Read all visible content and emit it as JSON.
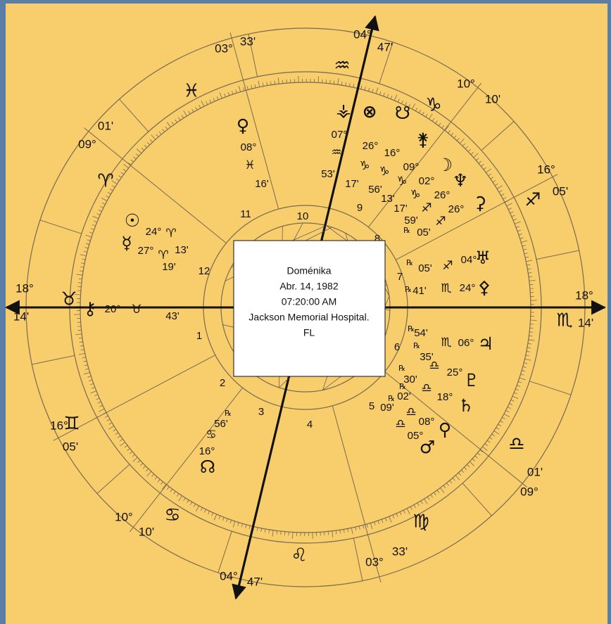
{
  "center_box": {
    "lines": [
      "Doménika",
      "Abr. 14, 1982",
      "07:20:00 AM",
      "Jackson Memorial Hospital.",
      "FL"
    ]
  },
  "cusps": [
    {
      "deg": "03°",
      "min": "33'"
    },
    {
      "deg": "04°",
      "min": "47'"
    },
    {
      "deg": "10°",
      "min": "10'"
    },
    {
      "deg": "16°",
      "min": "05'"
    },
    {
      "deg": "18°",
      "min": "14'"
    },
    {
      "deg": "09°",
      "min": "01'"
    },
    {
      "deg": "03°",
      "min": "33'"
    },
    {
      "deg": "04°",
      "min": "47'"
    },
    {
      "deg": "10°",
      "min": "10'"
    },
    {
      "deg": "16°",
      "min": "05'"
    },
    {
      "deg": "18°",
      "min": "14'"
    },
    {
      "deg": "09°",
      "min": "01'"
    }
  ],
  "signs": [
    "♒",
    "♓",
    "♑",
    "♈",
    "♐",
    "♉",
    "♏",
    "♊",
    "♎",
    "♋",
    "♍",
    "♌",
    "♉",
    "♏"
  ],
  "houses": [
    "10",
    "11",
    "12",
    "1",
    "2",
    "3",
    "4",
    "5",
    "6",
    "7",
    "8",
    "9"
  ],
  "points": [
    {
      "glyph": "♀",
      "deg": "08°",
      "sign": "♓",
      "min": "16'"
    },
    {
      "glyph": "⚶",
      "deg": "07°",
      "sign": "♒",
      "min": "53'"
    },
    {
      "glyph": "⊗",
      "deg": "26°",
      "sign": "♑",
      "min": "17'"
    },
    {
      "glyph": "☋",
      "deg": "16°",
      "sign": "♑",
      "min": "56'"
    },
    {
      "glyph": "⚵",
      "deg": "09°",
      "sign": "♑",
      "min": "13'"
    },
    {
      "glyph": "☽",
      "deg": "02°",
      "sign": "♑",
      "min": "17'"
    },
    {
      "glyph": "♆",
      "deg": "26°",
      "sign": "♐",
      "min": "59'"
    },
    {
      "glyph": "⚳",
      "deg": "26°",
      "sign": "♐",
      "min": "05'",
      "retro": "℞"
    },
    {
      "glyph": "♅",
      "deg": "04°",
      "sign": "♐",
      "min": "05'",
      "retro": "℞"
    },
    {
      "glyph": "⚴",
      "deg": "24°",
      "sign": "♏",
      "min": "41'",
      "retro": "℞"
    },
    {
      "glyph": "♃",
      "deg": "06°",
      "sign": "♏",
      "min": "54'",
      "retro": "℞"
    },
    {
      "glyph": "♇",
      "deg": "25°",
      "sign": "♎",
      "min": "35'",
      "retro": "℞"
    },
    {
      "glyph": "♄",
      "deg": "18°",
      "sign": "♎",
      "min": "30'",
      "retro": "℞"
    },
    {
      "glyph": "⚲",
      "deg": "08°",
      "sign": "♎",
      "min": "02'",
      "retro": "℞"
    },
    {
      "glyph": "♂",
      "deg": "05°",
      "sign": "♎",
      "min": "09'",
      "retro": "℞"
    },
    {
      "glyph": "☉",
      "deg": "24°",
      "sign": "♈",
      "min": "13'"
    },
    {
      "glyph": "☿",
      "deg": "27°",
      "sign": "♈",
      "min": "19'"
    },
    {
      "glyph": "⚷",
      "deg": "20°",
      "sign": "♉",
      "min": "43'"
    },
    {
      "glyph": "☊",
      "deg": "16°",
      "sign": "♋",
      "min": "56'",
      "retro": "℞"
    }
  ]
}
